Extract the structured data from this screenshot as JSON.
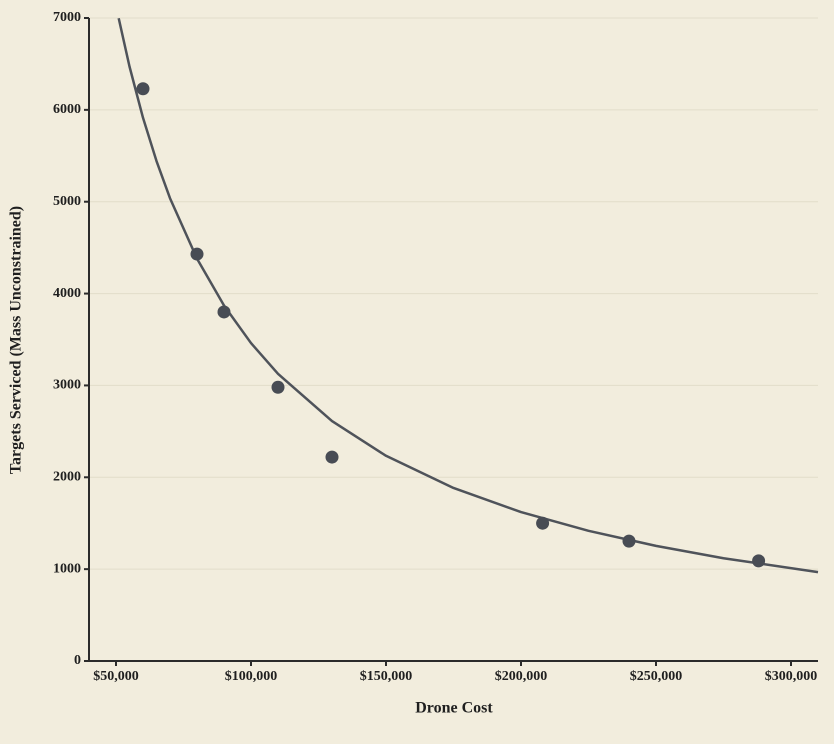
{
  "chart_data": {
    "type": "scatter",
    "x_label": "Drone Cost",
    "y_label": "Targets Serviced (Mass Unconstrained)",
    "xlim": [
      40000,
      310000
    ],
    "ylim": [
      0,
      7000
    ],
    "xticks": [
      {
        "value": 50000,
        "label": "$50,000"
      },
      {
        "value": 100000,
        "label": "$100,000"
      },
      {
        "value": 150000,
        "label": "$150,000"
      },
      {
        "value": 200000,
        "label": "$200,000"
      },
      {
        "value": 250000,
        "label": "$250,000"
      },
      {
        "value": 300000,
        "label": "$300,000"
      }
    ],
    "yticks": [
      0,
      1000,
      2000,
      3000,
      4000,
      5000,
      6000,
      7000
    ],
    "grid": true,
    "series": [
      {
        "type": "scatter",
        "color": "#484c54",
        "x": [
          60000,
          80000,
          90000,
          110000,
          130000,
          208000,
          240000,
          288000
        ],
        "values": [
          6230,
          4430,
          3800,
          2980,
          2220,
          1500,
          1305,
          1090
        ]
      },
      {
        "type": "line",
        "color": "#4f535a",
        "x": [
          51000,
          55000,
          60000,
          65000,
          70000,
          80000,
          90000,
          100000,
          110000,
          130000,
          150000,
          175000,
          200000,
          225000,
          250000,
          275000,
          310000
        ],
        "values": [
          6997,
          6472,
          5914,
          5443,
          5038,
          4381,
          3870,
          3461,
          3126,
          2612,
          2234,
          1884,
          1621,
          1417,
          1253,
          1119,
          968
        ]
      }
    ]
  }
}
